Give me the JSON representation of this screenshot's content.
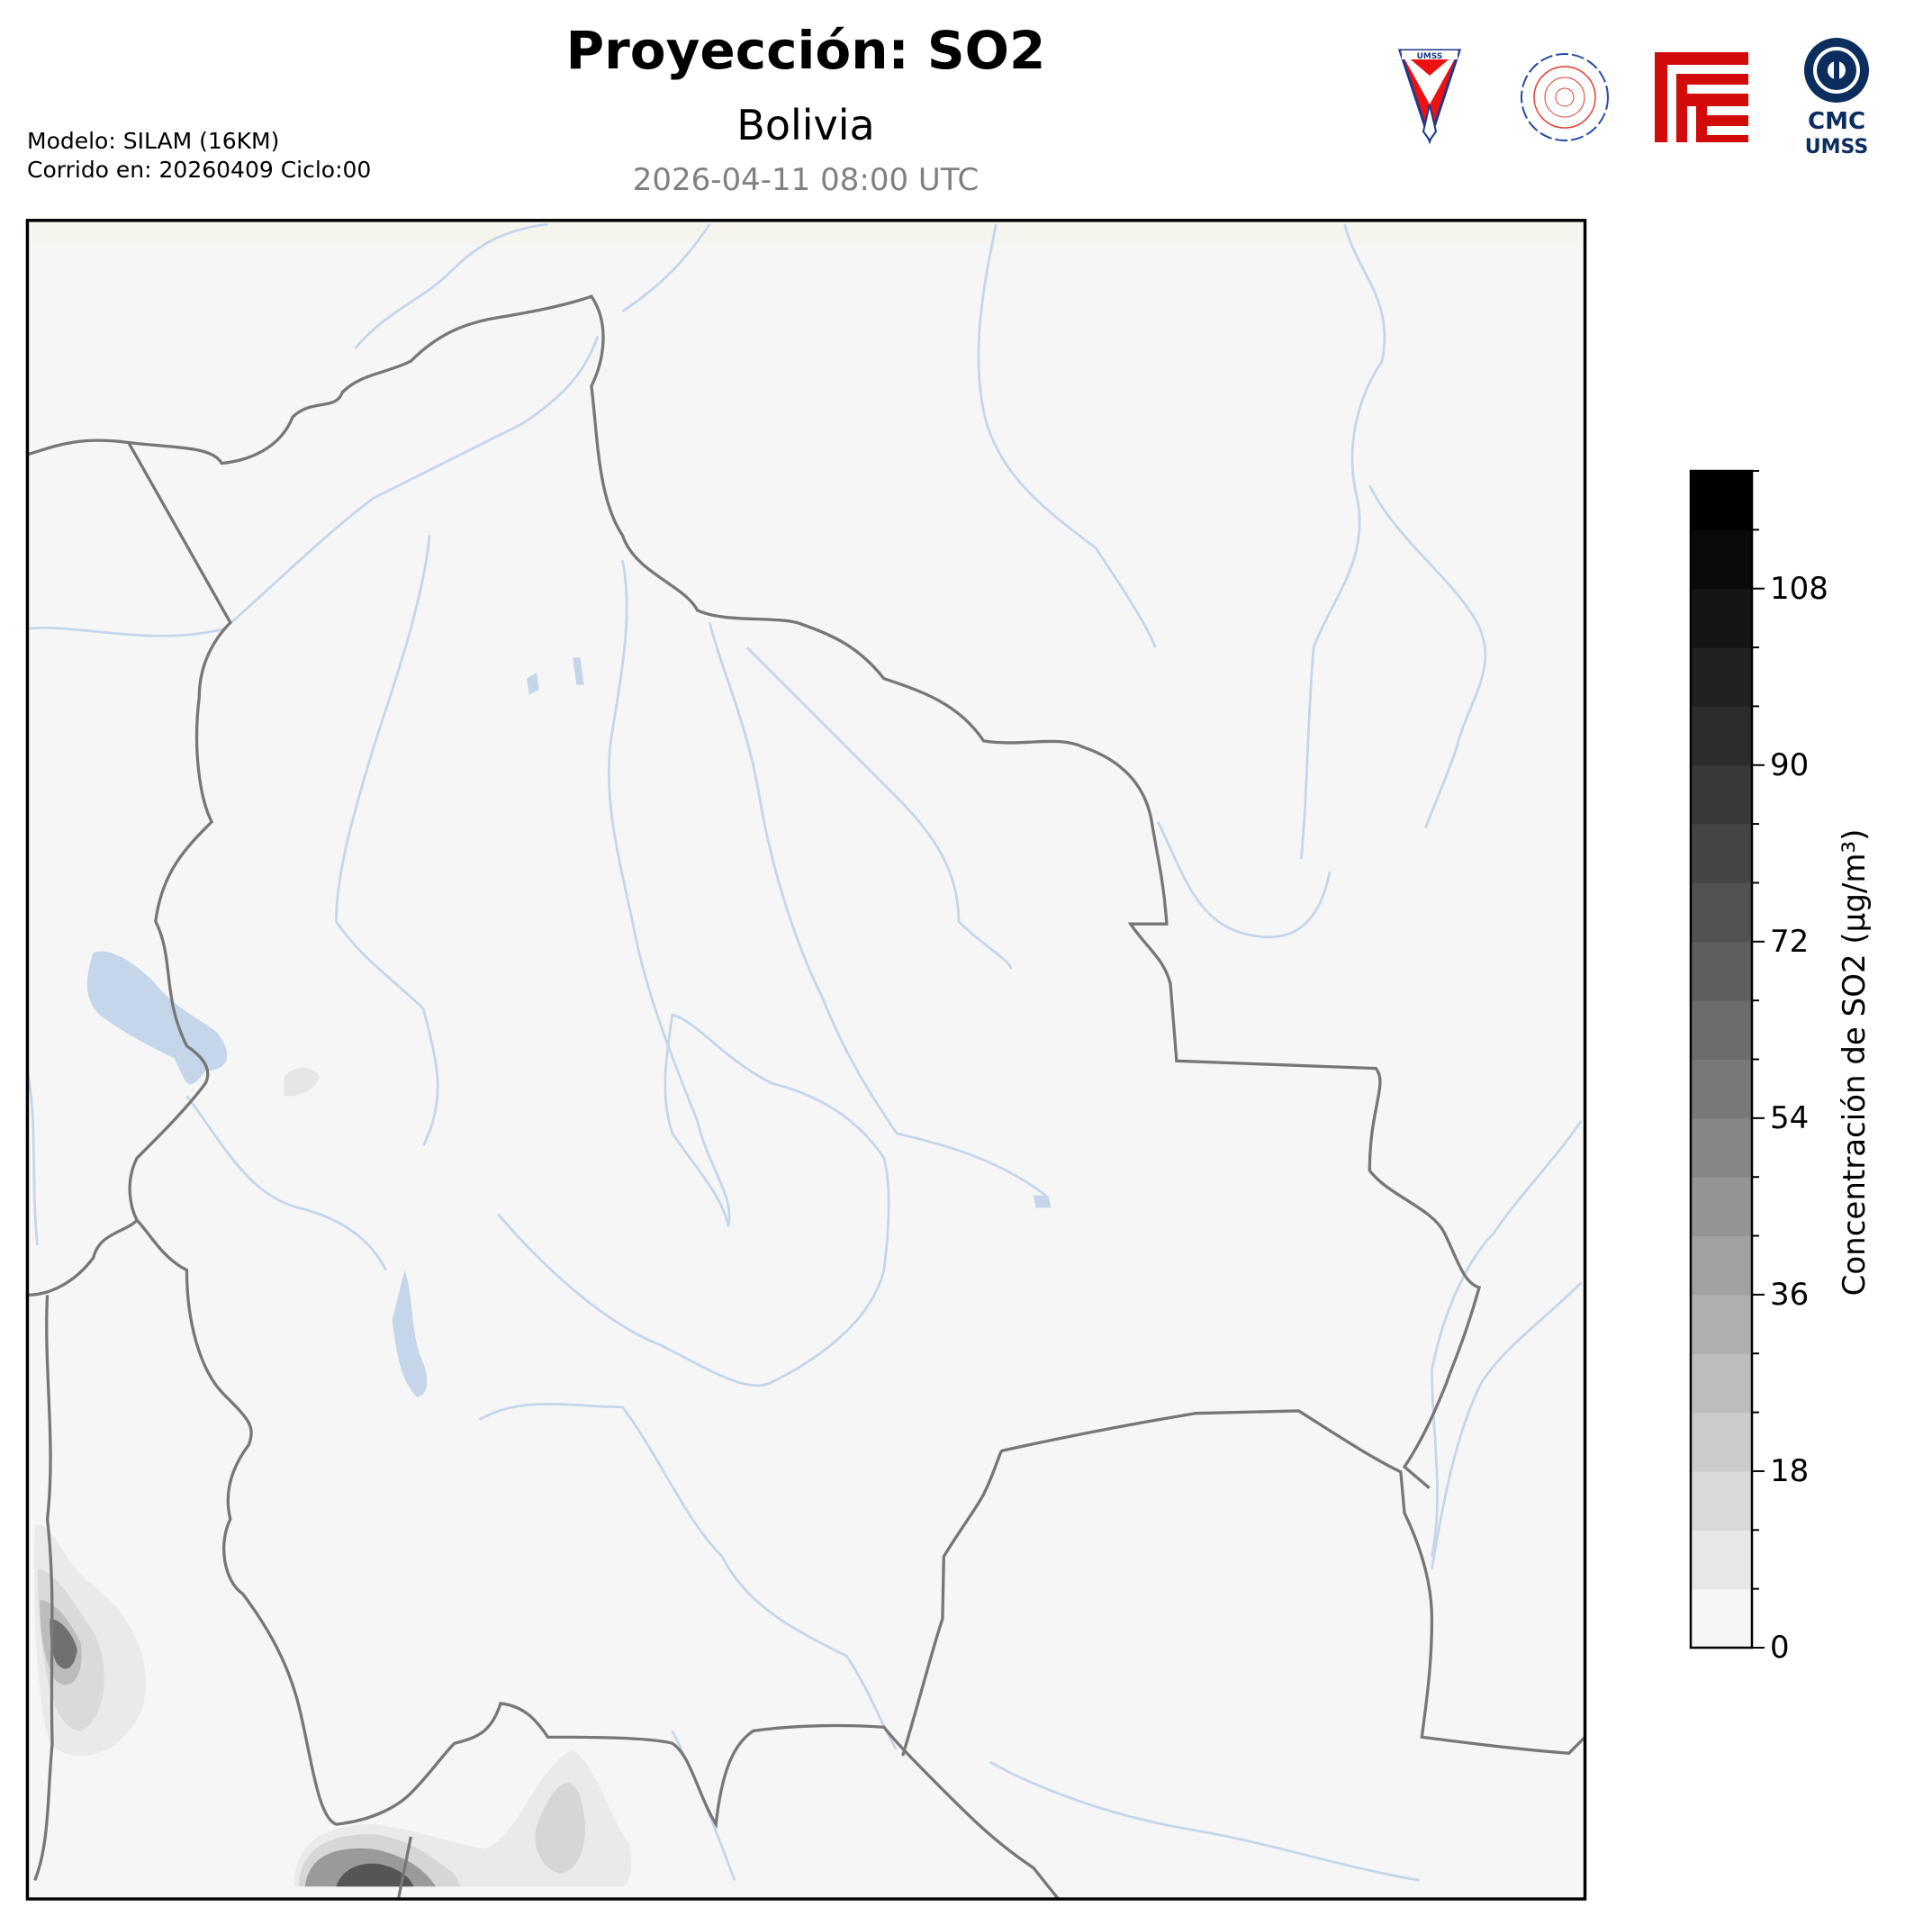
{
  "header": {
    "title": "Proyección: SO2",
    "subtitle": "Bolivia",
    "valid_time": "2026-04-11 08:00 UTC",
    "model": "Modelo: SILAM (16KM)",
    "run": "Corrido en: 20260409 Ciclo:00"
  },
  "logos": [
    {
      "name": "umss-pennant-logo",
      "text": "UMSS"
    },
    {
      "name": "departamento-de-fisica-seal",
      "text": "DEPARTAMENTO DE FÍSICA"
    },
    {
      "name": "red-geometric-logo",
      "text": ""
    },
    {
      "name": "cmc-umss-logo",
      "text": "CMC UMSS"
    }
  ],
  "map": {
    "region": "Bolivia",
    "ocean_color": "#f5f5ee",
    "land_color": "#f5f5f5",
    "river_color": "#c5d6ea",
    "border_color": "#777777"
  },
  "colorbar": {
    "label": "Concentración de SO2 (μg/m³)",
    "min": 0,
    "max": 120,
    "step": 6,
    "tick_labels": [
      "0",
      "18",
      "36",
      "54",
      "72",
      "90",
      "108"
    ],
    "colormap": "Greys"
  }
}
